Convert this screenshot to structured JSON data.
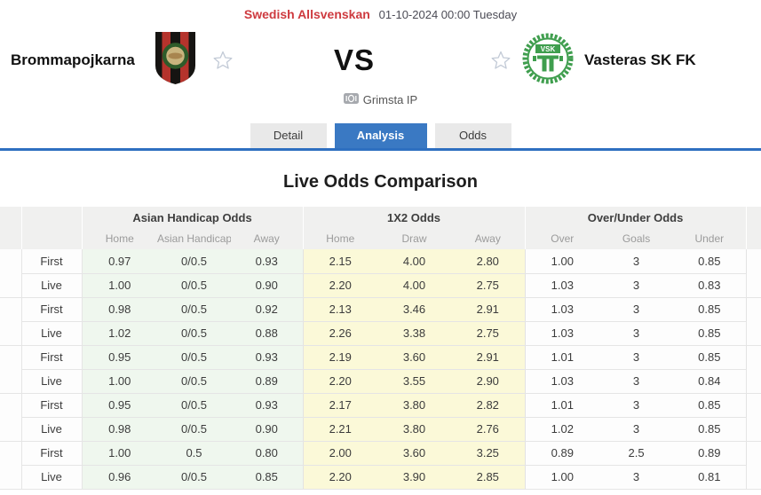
{
  "header": {
    "league": "Swedish Allsvenskan",
    "datetime": "01-10-2024 00:00 Tuesday",
    "home_team": "Brommapojkarna",
    "away_team": "Vasteras SK FK",
    "vs_label": "VS",
    "venue": "Grimsta IP",
    "away_badge_text": "VSK"
  },
  "tabs": [
    {
      "label": "Detail",
      "active": false
    },
    {
      "label": "Analysis",
      "active": true
    },
    {
      "label": "Odds",
      "active": false
    }
  ],
  "section_title": "Live Odds Comparison",
  "table": {
    "group_headers": [
      "Asian Handicap Odds",
      "1X2 Odds",
      "Over/Under Odds"
    ],
    "sub_headers": [
      "Home",
      "Asian Handicap",
      "Away",
      "Home",
      "Draw",
      "Away",
      "Over",
      "Goals",
      "Under"
    ],
    "rows": [
      {
        "type": "First",
        "cells": [
          "0.97",
          "0/0.5",
          "0.93",
          "2.15",
          "4.00",
          "2.80",
          "1.00",
          "3",
          "0.85"
        ]
      },
      {
        "type": "Live",
        "cells": [
          "1.00",
          "0/0.5",
          "0.90",
          "2.20",
          "4.00",
          "2.75",
          "1.03",
          "3",
          "0.83"
        ]
      },
      {
        "type": "First",
        "cells": [
          "0.98",
          "0/0.5",
          "0.92",
          "2.13",
          "3.46",
          "2.91",
          "1.03",
          "3",
          "0.85"
        ]
      },
      {
        "type": "Live",
        "cells": [
          "1.02",
          "0/0.5",
          "0.88",
          "2.26",
          "3.38",
          "2.75",
          "1.03",
          "3",
          "0.85"
        ]
      },
      {
        "type": "First",
        "cells": [
          "0.95",
          "0/0.5",
          "0.93",
          "2.19",
          "3.60",
          "2.91",
          "1.01",
          "3",
          "0.85"
        ]
      },
      {
        "type": "Live",
        "cells": [
          "1.00",
          "0/0.5",
          "0.89",
          "2.20",
          "3.55",
          "2.90",
          "1.03",
          "3",
          "0.84"
        ]
      },
      {
        "type": "First",
        "cells": [
          "0.95",
          "0/0.5",
          "0.93",
          "2.17",
          "3.80",
          "2.82",
          "1.01",
          "3",
          "0.85"
        ]
      },
      {
        "type": "Live",
        "cells": [
          "0.98",
          "0/0.5",
          "0.90",
          "2.21",
          "3.80",
          "2.76",
          "1.02",
          "3",
          "0.85"
        ]
      },
      {
        "type": "First",
        "cells": [
          "1.00",
          "0.5",
          "0.80",
          "2.00",
          "3.60",
          "3.25",
          "0.89",
          "2.5",
          "0.89"
        ]
      },
      {
        "type": "Live",
        "cells": [
          "0.96",
          "0/0.5",
          "0.85",
          "2.20",
          "3.90",
          "2.85",
          "1.00",
          "3",
          "0.81"
        ]
      }
    ]
  },
  "colors": {
    "accent_red": "#ce3a3f",
    "accent_blue": "#3a79c3",
    "tab_line_blue": "#2e6fc0",
    "asian_handicap_bg": "#eff7ee",
    "x12_bg": "#fbf9d8",
    "header_bg": "#f0f0ef",
    "home_badge_red": "#b5332c",
    "away_badge_green": "#3f9e4e"
  }
}
